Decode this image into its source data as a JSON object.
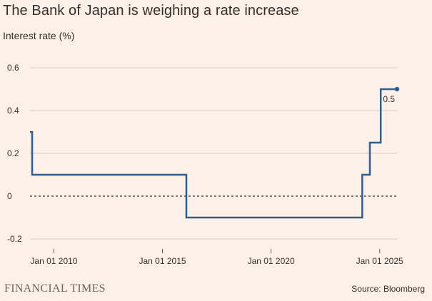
{
  "title": "The Bank of Japan is weighing a rate increase",
  "subtitle": "Interest rate (%)",
  "brand": "FINANCIAL TIMES",
  "source": "Source: Bloomberg",
  "colors": {
    "line": "#2b5e95",
    "grid": "#d9cdc3",
    "zero": "#33302e",
    "background": "#fdf0e6"
  },
  "chart_data": {
    "type": "line",
    "step": true,
    "title": "The Bank of Japan is weighing a rate increase",
    "ylabel": "Interest rate (%)",
    "xlabel": "",
    "ylim": [
      -0.2,
      0.6
    ],
    "xlim": [
      2008.9,
      2025.8
    ],
    "yticks": [
      -0.2,
      0,
      0.2,
      0.4,
      0.6
    ],
    "ytick_labels": [
      "-0.2",
      "0",
      "0.2",
      "0.4",
      "0.6"
    ],
    "xticks": [
      2010,
      2015,
      2020,
      2025
    ],
    "xtick_labels": [
      "Jan 01 2010",
      "Jan 01 2015",
      "Jan 01 2020",
      "Jan 01 2025"
    ],
    "series": [
      {
        "name": "Interest rate",
        "x": [
          2008.9,
          2009.0,
          2016.1,
          2024.2,
          2024.55,
          2025.05,
          2025.8
        ],
        "y": [
          0.3,
          0.1,
          -0.1,
          0.1,
          0.25,
          0.5,
          0.5
        ]
      }
    ],
    "end_label": "0.5",
    "zero_line": "dashed"
  }
}
